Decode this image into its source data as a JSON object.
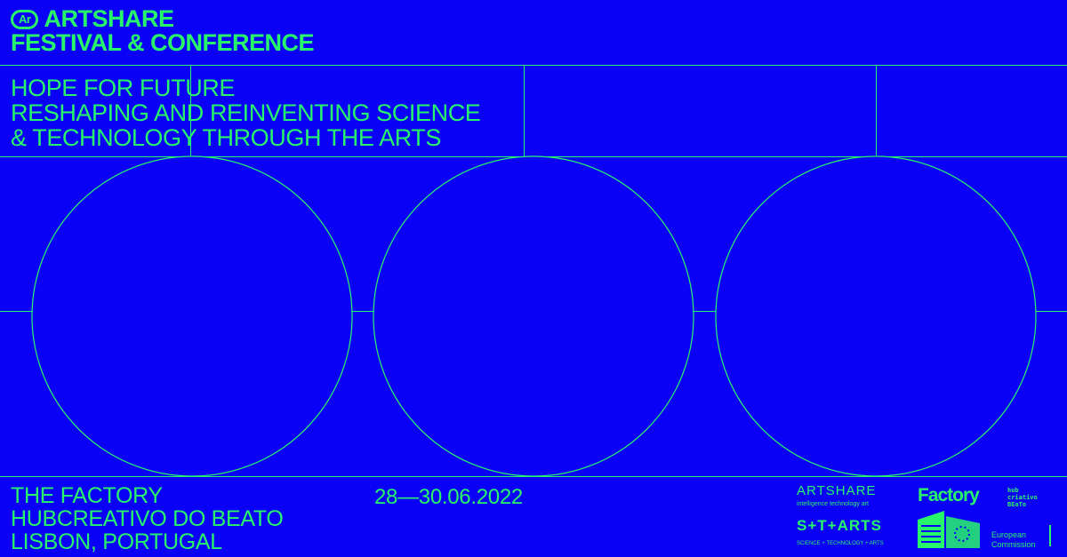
{
  "header": {
    "badge": "Ar",
    "title_line1": "ARTSHARE",
    "title_line2": "FESTIVAL & CONFERENCE"
  },
  "subtitle": {
    "line1": "HOPE FOR FUTURE",
    "line2": "RESHAPING AND REINVENTING SCIENCE",
    "line3": "& TECHNOLOGY THROUGH THE ARTS"
  },
  "venue": {
    "line1": "THE FACTORY",
    "line2": "HUBCREATIVO DO BEATO",
    "line3": "LISBON, PORTUGAL"
  },
  "dates": "28—30.06.2022",
  "logos": {
    "artshare": "ARTSHARE",
    "artshare_tagline": "intelligence technology art",
    "starts": "S+T+ARTS",
    "starts_tagline": "SCIENCE + TECHNOLOGY + ARTS",
    "factory": "Factory",
    "hub_line1": "hub",
    "hub_line2": "criativo",
    "hub_line3": "BEaTo",
    "eu_line1": "European",
    "eu_line2": "Commission"
  },
  "colors": {
    "background": "#0a00f5",
    "accent": "#27f56a"
  }
}
